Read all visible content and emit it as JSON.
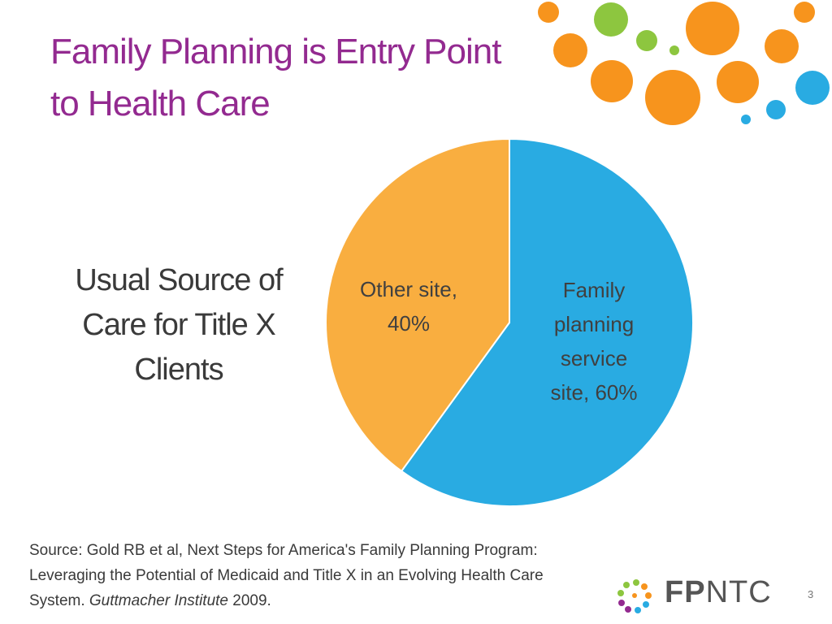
{
  "header": {
    "title": "Family Planning is Entry Point to Health Care"
  },
  "side_label": "Usual Source of Care for Title X Clients",
  "source": {
    "text": "Source: Gold RB et al, Next Steps for America's Family Planning Program: Leveraging the Potential of Medicaid and Title X in an Evolving Health Care System.",
    "italic": "Guttmacher Institute",
    "year": "2009."
  },
  "logo": {
    "bold": "FP",
    "text": "NTC"
  },
  "page_number": "3",
  "chart_data": {
    "type": "pie",
    "categories": [
      "Family planning service site,",
      "Other site,"
    ],
    "values": [
      60,
      40
    ],
    "value_labels": [
      "60%",
      "40%"
    ],
    "colors": [
      "#29abe2",
      "#f9ae40"
    ]
  }
}
